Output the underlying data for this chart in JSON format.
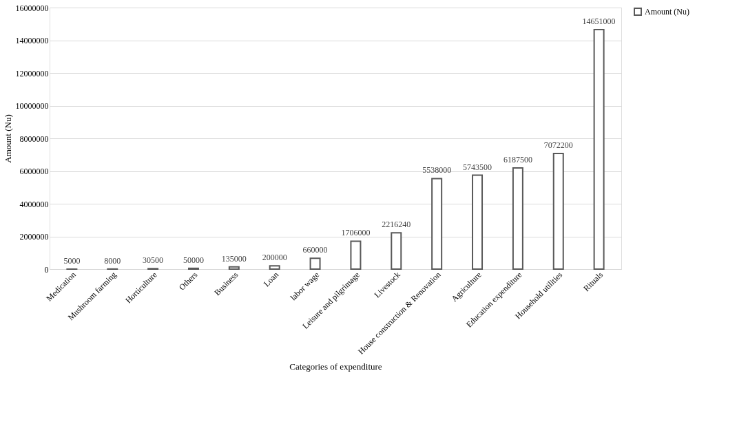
{
  "chart_data": {
    "type": "bar",
    "xlabel": "Categories of expenditure",
    "ylabel": "Amount (Nu)",
    "categories": [
      "Medication",
      "Mushroom farming",
      "Horticulture",
      "Others",
      "Business",
      "Loan",
      "labor wage",
      "Leisure and pilgrimage",
      "Livestock",
      "House construction & Renovation",
      "Agriculture",
      "Education expenditure",
      "Household utilities",
      "Rituals"
    ],
    "series": [
      {
        "name": "Amount (Nu)",
        "color": "#595959",
        "values": [
          5000,
          8000,
          30500,
          50000,
          135000,
          200000,
          660000,
          1706000,
          2216240,
          5538000,
          5743500,
          6187500,
          7072200,
          14651000
        ]
      }
    ],
    "ylim": [
      0,
      16000000
    ],
    "yticks": [
      0,
      2000000,
      4000000,
      6000000,
      8000000,
      10000000,
      12000000,
      14000000,
      16000000
    ],
    "grid": "y",
    "legend": "right",
    "data_labels": true
  }
}
